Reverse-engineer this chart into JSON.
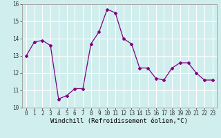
{
  "x": [
    0,
    1,
    2,
    3,
    4,
    5,
    6,
    7,
    8,
    9,
    10,
    11,
    12,
    13,
    14,
    15,
    16,
    17,
    18,
    19,
    20,
    21,
    22,
    23
  ],
  "y": [
    13.0,
    13.8,
    13.9,
    13.6,
    10.5,
    10.7,
    11.1,
    11.1,
    13.7,
    14.4,
    15.7,
    15.5,
    14.0,
    13.7,
    12.3,
    12.3,
    11.7,
    11.6,
    12.3,
    12.6,
    12.6,
    12.0,
    11.6,
    11.6
  ],
  "line_color": "#800080",
  "marker": "D",
  "marker_size": 2,
  "bg_color": "#d0eeee",
  "grid_color": "#ffffff",
  "xlabel": "Windchill (Refroidissement éolien,°C)",
  "ylabel_ticks": [
    10,
    11,
    12,
    13,
    14,
    15,
    16
  ],
  "xlim": [
    -0.5,
    23.5
  ],
  "ylim": [
    10,
    16
  ],
  "xticks": [
    0,
    1,
    2,
    3,
    4,
    5,
    6,
    7,
    8,
    9,
    10,
    11,
    12,
    13,
    14,
    15,
    16,
    17,
    18,
    19,
    20,
    21,
    22,
    23
  ],
  "tick_fontsize": 5.5,
  "xlabel_fontsize": 6.5,
  "linewidth": 0.9
}
